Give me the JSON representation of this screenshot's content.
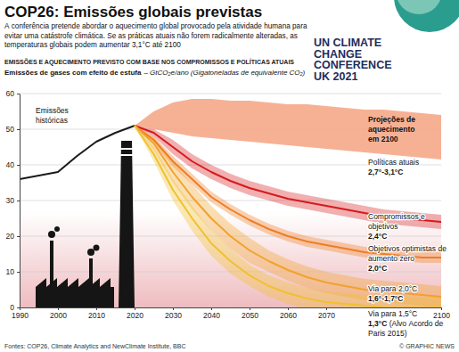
{
  "chart_data": {
    "type": "line",
    "title": "COP26: Emissões globais previstas",
    "subtitle": "A conferência pretende abordar o aquecimento global provocado pela atividade humana para evitar uma catástrofe climática. Se as práticas atuais não forem radicalmente alteradas, as temperaturas globais podem aumentar 3,1°C até 2100",
    "logo": [
      "UN CLIMATE",
      "CHANGE",
      "CONFERENCE",
      "UK 2021"
    ],
    "heading": "EMISSÕES E AQUECIMENTO PREVISTO COM BASE NOS COMPROMISSOS E POLÍTICAS ATUAIS",
    "ylabel": "Emissões de gases com efeito de estufa",
    "ylabel_unit": "– GtCO₂e/ano (Gigatoneladas de equivalente CO₂)",
    "projection_title": "Projeções de aquecimento em 2100",
    "source": "Fontes: COP26, Climate Analytics and NewClimate Institute, BBC",
    "credit": "© GRAPHIC NEWS",
    "x": [
      1990,
      1995,
      2000,
      2005,
      2010,
      2015,
      2020,
      2025,
      2030,
      2035,
      2040,
      2045,
      2050,
      2055,
      2060,
      2065,
      2070,
      2075,
      2080,
      2085,
      2090,
      2095,
      2100
    ],
    "xlim": [
      1990,
      2100
    ],
    "xticks": [
      1990,
      2000,
      2010,
      2020,
      2030,
      2040,
      2050,
      2060,
      2070,
      2100
    ],
    "ylim": [
      0,
      60
    ],
    "yticks": [
      0,
      10,
      20,
      30,
      40,
      50,
      60
    ],
    "grid": true,
    "series": [
      {
        "name": "Emissões históricas",
        "type": "line",
        "color": "#1a1a1a",
        "values": [
          36,
          37,
          38,
          42.5,
          46.5,
          49,
          51,
          null,
          null,
          null,
          null,
          null,
          null,
          null,
          null,
          null,
          null,
          null,
          null,
          null,
          null,
          null,
          null
        ]
      },
      {
        "name": "Políticas atuais",
        "type": "band",
        "color": "#f4a383",
        "projection": "2,7°-3,1°C",
        "high": [
          null,
          null,
          null,
          null,
          null,
          null,
          51,
          55,
          57.5,
          58.5,
          58.5,
          58,
          58,
          57.5,
          57,
          57,
          56.5,
          56,
          55.5,
          55.5,
          55,
          54.5,
          54
        ],
        "low": [
          null,
          null,
          null,
          null,
          null,
          null,
          51,
          50,
          49,
          48,
          47.5,
          47,
          46.5,
          46,
          45.5,
          45,
          44.5,
          44,
          43.5,
          43,
          42.5,
          42,
          41.5
        ]
      },
      {
        "name": "Compromissos e objetivos",
        "type": "line",
        "color": "#d7191c",
        "projection": "2,4°C",
        "values": [
          null,
          null,
          null,
          null,
          null,
          null,
          51,
          49,
          45,
          41,
          38,
          35.5,
          33.5,
          32,
          30.5,
          29.5,
          28.5,
          27.5,
          26.5,
          25.5,
          25,
          24.5,
          24
        ],
        "high": [
          null,
          null,
          null,
          null,
          null,
          null,
          51,
          50,
          47,
          43,
          40,
          37.5,
          35.5,
          34,
          32.5,
          31.5,
          30.5,
          29.5,
          28.5,
          27.5,
          27,
          26.5,
          26
        ],
        "low": [
          null,
          null,
          null,
          null,
          null,
          null,
          51,
          48,
          43,
          39,
          36,
          33.5,
          31.5,
          30,
          28.5,
          27.5,
          26.5,
          25.5,
          24.5,
          23.5,
          23,
          22.5,
          22
        ]
      },
      {
        "name": "Objetivos optimistas de aumento zero",
        "type": "line",
        "color": "#ef7d22",
        "projection": "2,0°C",
        "values": [
          null,
          null,
          null,
          null,
          null,
          null,
          51,
          47,
          41,
          36,
          31,
          27.5,
          24.5,
          22,
          20,
          18.5,
          17.5,
          16.5,
          15.5,
          15,
          14.5,
          14,
          14
        ],
        "high": [
          null,
          null,
          null,
          null,
          null,
          null,
          51,
          48,
          42.5,
          37.5,
          32.5,
          29,
          26,
          23.5,
          21.5,
          20,
          19,
          18,
          17,
          16.5,
          16,
          15.5,
          15.5
        ],
        "low": [
          null,
          null,
          null,
          null,
          null,
          null,
          51,
          46,
          39.5,
          34.5,
          29.5,
          26,
          23,
          20.5,
          18.5,
          17,
          16,
          15,
          14,
          13.5,
          13,
          12.5,
          12.5
        ]
      },
      {
        "name": "Via para 2,0°C",
        "type": "line",
        "color": "#f2a22c",
        "projection": "1,6°-1,7°C",
        "values": [
          null,
          null,
          null,
          null,
          null,
          null,
          51,
          46,
          38,
          31,
          25,
          20,
          16,
          13,
          10.5,
          8.5,
          7,
          6,
          5,
          4.5,
          4,
          3.5,
          3
        ],
        "high": [
          null,
          null,
          null,
          null,
          null,
          null,
          51,
          48,
          41,
          34.5,
          28.5,
          23.5,
          19.5,
          16,
          13.5,
          11.5,
          10,
          9,
          8,
          7.5,
          7,
          6.5,
          6
        ],
        "low": [
          null,
          null,
          null,
          null,
          null,
          null,
          51,
          44,
          35,
          27.5,
          21.5,
          16.5,
          12.5,
          10,
          7.5,
          5.5,
          4,
          3,
          2,
          1.5,
          1,
          0.5,
          0
        ]
      },
      {
        "name": "Via para 1,5°C",
        "type": "line",
        "color": "#f0c12c",
        "projection": "1,3°C",
        "note": "(Alvo Acordo de Paris 2015)",
        "values": [
          null,
          null,
          null,
          null,
          null,
          null,
          51,
          43,
          33,
          25,
          18,
          13,
          9,
          6,
          4,
          2.5,
          1.5,
          1,
          0.5,
          0,
          0,
          0,
          0
        ],
        "high": [
          null,
          null,
          null,
          null,
          null,
          null,
          51,
          45,
          36,
          28.5,
          21.5,
          16.5,
          12,
          9,
          7,
          5.5,
          4.5,
          4,
          3.5,
          3,
          3,
          3,
          3
        ],
        "low": [
          null,
          null,
          null,
          null,
          null,
          null,
          51,
          41,
          30,
          21.5,
          14.5,
          9.5,
          6,
          3,
          1,
          -0.5,
          -1.5,
          -2,
          -2.5,
          -3,
          -3,
          -3,
          -3
        ]
      }
    ]
  }
}
